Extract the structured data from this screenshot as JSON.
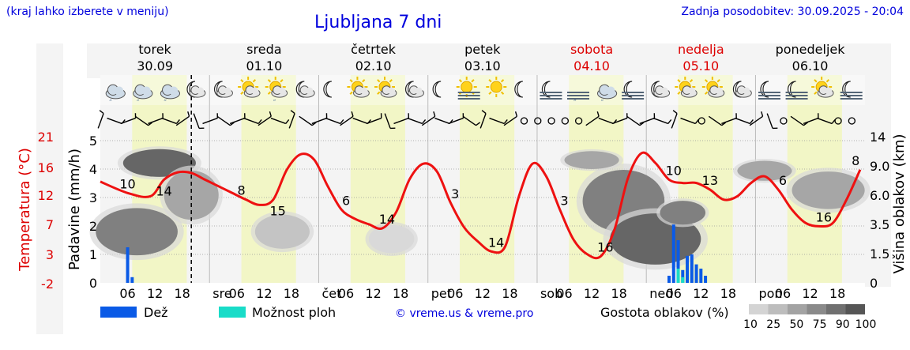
{
  "header": {
    "region_hint": "(kraj lahko izberete v meniju)",
    "title": "Ljubljana 7 dni",
    "updated": "Zadnja posodobitev: 30.09.2025 - 20:04"
  },
  "days": [
    {
      "name": "torek",
      "date": "30.09",
      "weekend": false,
      "abbr": ""
    },
    {
      "name": "sreda",
      "date": "01.10",
      "weekend": false,
      "abbr": "sre"
    },
    {
      "name": "četrtek",
      "date": "02.10",
      "weekend": false,
      "abbr": "čet"
    },
    {
      "name": "petek",
      "date": "03.10",
      "weekend": false,
      "abbr": "pet"
    },
    {
      "name": "sobota",
      "date": "04.10",
      "weekend": true,
      "abbr": "sob"
    },
    {
      "name": "nedelja",
      "date": "05.10",
      "weekend": true,
      "abbr": "ned"
    },
    {
      "name": "ponedeljek",
      "date": "06.10",
      "weekend": false,
      "abbr": "pon"
    }
  ],
  "hour_ticks": [
    "06",
    "12",
    "18"
  ],
  "icons": [
    "cloud-rain",
    "cloud-rain",
    "cloud-rain",
    "moon-cloud",
    "moon-cloud",
    "sun-cloud",
    "sun-cloud-rain",
    "moon-cloud",
    "moon",
    "sun-cloud",
    "sun-cloud",
    "moon-cloud",
    "moon",
    "sun-fog",
    "sun",
    "moon",
    "moon-fog",
    "fog-rain",
    "cloud-rain",
    "moon-fog",
    "moon-cloud",
    "sun-cloud",
    "sun-cloud",
    "moon-cloud",
    "moon-fog",
    "moon-fog",
    "sun-cloud",
    "moon-fog"
  ],
  "legend": {
    "rain": "Dež",
    "showers": "Možnost ploh",
    "credit": "© vreme.us & vreme.pro",
    "cloud_density": "Gostota oblakov (%)",
    "density_values": [
      "10",
      "25",
      "50",
      "75",
      "90",
      "100"
    ]
  },
  "colors": {
    "rain": "#0a5ae6",
    "showers": "#19dcc8",
    "temp_line": "#ee1111",
    "weekend_text": "#dd0000",
    "header_text": "#0000dd",
    "day_shade": "#f2f6c6"
  },
  "chart_data": {
    "type": "line",
    "title": "Ljubljana 7 dni",
    "x_unit": "hours since 30.09 00:00",
    "now_marker_hour": 20,
    "axes": {
      "left_outer": {
        "label": "Temperatura (°C)",
        "ticks": [
          "21",
          "16",
          "12",
          "7",
          "3",
          "-2"
        ],
        "range": [
          -2,
          21.5
        ]
      },
      "left_inner": {
        "label": "Padavine (mm/h)",
        "ticks": [
          "5",
          "4",
          "3",
          "2",
          "1",
          "0"
        ],
        "range": [
          0,
          5.5
        ]
      },
      "right": {
        "label": "Višina oblakov (km)",
        "ticks": [
          "14",
          "9.0",
          "6.0",
          "3.5",
          "1.5",
          "0"
        ]
      }
    },
    "temperature_series": {
      "name": "Temperatura",
      "x": [
        0,
        6,
        11,
        14,
        17,
        20,
        23,
        26,
        29,
        32,
        35,
        38,
        41,
        44,
        47,
        50,
        53,
        56,
        59,
        62,
        65,
        68,
        71,
        74,
        77,
        80,
        83,
        86,
        89,
        92,
        95,
        98,
        101,
        104,
        107,
        110,
        113,
        116,
        119,
        122,
        125,
        128,
        131,
        134,
        137,
        140,
        143,
        146,
        149,
        152,
        155,
        158,
        161,
        164,
        167
      ],
      "y": [
        13.2,
        11.5,
        11.0,
        13.5,
        14.6,
        14.5,
        13.5,
        12.5,
        11.5,
        10.5,
        9.7,
        10.5,
        15.0,
        17.3,
        16.5,
        12.5,
        9.0,
        7.6,
        6.8,
        6.2,
        8.6,
        13.6,
        15.9,
        14.7,
        10.0,
        6.3,
        4.2,
        2.7,
        3.5,
        11.0,
        15.9,
        14.0,
        9.0,
        4.5,
        2.3,
        2.0,
        6.0,
        13.8,
        17.5,
        16.0,
        13.5,
        13.0,
        13.0,
        12.0,
        10.5,
        11.0,
        13.0,
        14.0,
        12.0,
        9.0,
        7.0,
        6.5,
        7.0,
        10.5,
        15.0
      ]
    },
    "temperature_labels": [
      {
        "x": 6,
        "value": "10"
      },
      {
        "x": 14,
        "value": "14"
      },
      {
        "x": 31,
        "value": "8"
      },
      {
        "x": 39,
        "value": "15"
      },
      {
        "x": 54,
        "value": "6"
      },
      {
        "x": 63,
        "value": "14"
      },
      {
        "x": 78,
        "value": "3"
      },
      {
        "x": 87,
        "value": "14"
      },
      {
        "x": 102,
        "value": "3"
      },
      {
        "x": 111,
        "value": "16"
      },
      {
        "x": 126,
        "value": "10"
      },
      {
        "x": 134,
        "value": "13"
      },
      {
        "x": 150,
        "value": "6"
      },
      {
        "x": 159,
        "value": "16"
      },
      {
        "x": 166,
        "value": "8"
      }
    ],
    "precipitation_series": {
      "name": "Dež",
      "x": [
        6,
        7,
        125,
        126,
        127,
        128,
        129,
        130,
        131,
        132,
        133
      ],
      "y": [
        1.25,
        0.2,
        0.25,
        2.05,
        1.5,
        0.45,
        0.95,
        1.0,
        0.65,
        0.5,
        0.25
      ]
    },
    "showers_series": {
      "name": "Možnost ploh",
      "x": [
        127,
        128
      ],
      "y": [
        0.5,
        0.2
      ]
    },
    "cloud_blobs": [
      {
        "x": 13,
        "y_km": 9.5,
        "dx": 8,
        "dy_km": 3,
        "density": 90
      },
      {
        "x": 8,
        "y_km": 3.0,
        "dx": 9,
        "dy_km": 3,
        "density": 75
      },
      {
        "x": 20,
        "y_km": 6.0,
        "dx": 6,
        "dy_km": 4,
        "density": 50
      },
      {
        "x": 40,
        "y_km": 3.0,
        "dx": 6,
        "dy_km": 2,
        "density": 25
      },
      {
        "x": 64,
        "y_km": 2.5,
        "dx": 5,
        "dy_km": 1.5,
        "density": 10
      },
      {
        "x": 115,
        "y_km": 5.5,
        "dx": 9,
        "dy_km": 5,
        "density": 75
      },
      {
        "x": 108,
        "y_km": 10.0,
        "dx": 6,
        "dy_km": 2,
        "density": 50
      },
      {
        "x": 122,
        "y_km": 2.5,
        "dx": 10,
        "dy_km": 3,
        "density": 90
      },
      {
        "x": 128,
        "y_km": 4.5,
        "dx": 5,
        "dy_km": 1.5,
        "density": 75
      },
      {
        "x": 146,
        "y_km": 8.5,
        "dx": 6,
        "dy_km": 1.5,
        "density": 50
      },
      {
        "x": 160,
        "y_km": 6.5,
        "dx": 8,
        "dy_km": 3,
        "density": 50
      }
    ],
    "wind_barbs_count": 56
  }
}
